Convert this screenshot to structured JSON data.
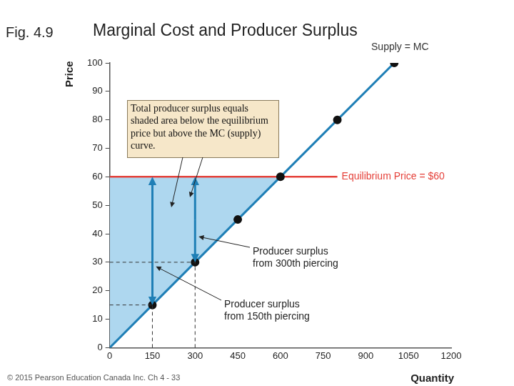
{
  "chart_data": {
    "type": "line",
    "figure_label": "Fig. 4.9",
    "title": "Marginal Cost and Producer Surplus",
    "x_label": "Quantity",
    "y_label": "Price",
    "footer": "© 2015 Pearson Education Canada Inc. Ch 4 - 33",
    "series": [
      {
        "name": "Supply = MC",
        "color": "#1f7fb6",
        "marker": "circle",
        "x": [
          0,
          150,
          300,
          450,
          600,
          800,
          1000
        ],
        "values": [
          0,
          15,
          30,
          45,
          60,
          80,
          100
        ]
      },
      {
        "name": "Equilibrium Price = $60",
        "color": "#e5413a",
        "marker": "none",
        "x": [
          0,
          800
        ],
        "values": [
          60,
          60
        ]
      }
    ],
    "equilibrium": {
      "price": 60,
      "quantity": 600
    },
    "surplus_units": [
      {
        "quantity": 150,
        "cost": 15,
        "label": [
          "Producer surplus",
          "from 150th piercing"
        ]
      },
      {
        "quantity": 300,
        "cost": 30,
        "label": [
          "Producer surplus",
          "from 300th piercing"
        ]
      }
    ],
    "annotation": [
      "Total producer surplus equals",
      "shaded area below the equilibrium",
      "price but above the MC (supply)",
      "curve."
    ],
    "xlim": [
      0,
      1200
    ],
    "xticks": [
      0,
      150,
      300,
      450,
      600,
      750,
      900,
      1050,
      1200
    ],
    "ylim": [
      0,
      100
    ],
    "yticks": [
      0,
      10,
      20,
      30,
      40,
      50,
      60,
      70,
      80,
      90,
      100
    ],
    "grid": false
  }
}
